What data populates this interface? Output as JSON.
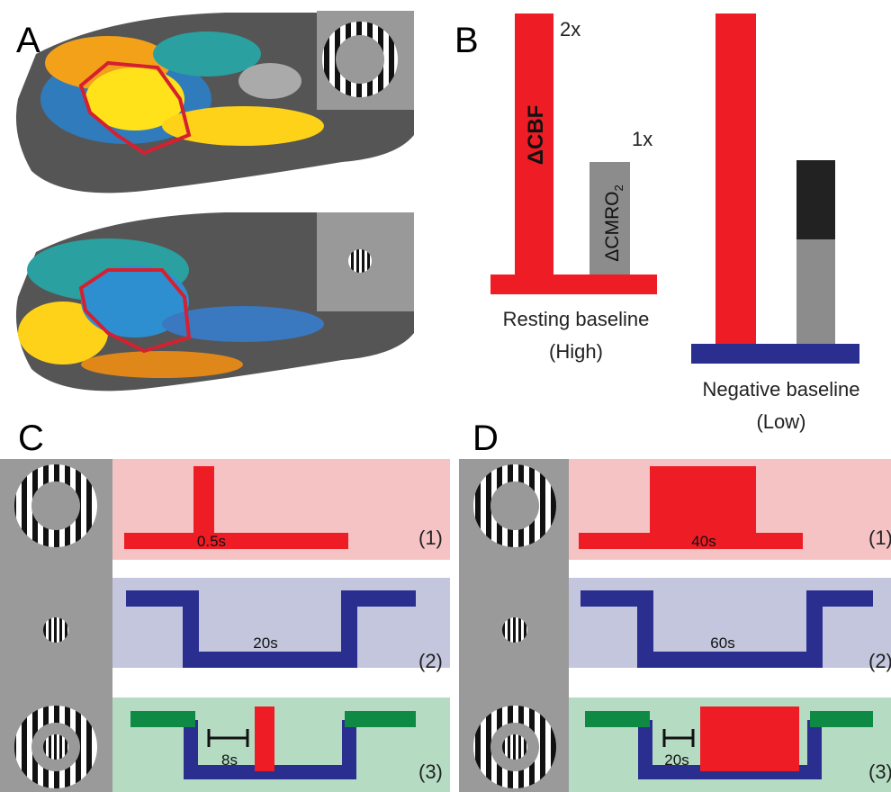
{
  "panels": {
    "a": {
      "label": "A"
    },
    "b": {
      "label": "B",
      "high_level": "2x",
      "low_level": "1x",
      "cbf_label": "ΔCBF",
      "cmro2_label": "ΔCMRO",
      "cmro2_subscript": "2",
      "resting_baseline": "Resting baseline",
      "resting_level": "(High)",
      "negative_baseline": "Negative baseline",
      "negative_level": "(Low)"
    },
    "c": {
      "label": "C",
      "rows": [
        {
          "duration": "0.5s",
          "index": "(1)"
        },
        {
          "duration": "20s",
          "index": "(2)"
        },
        {
          "duration": "8s",
          "index": "(3)"
        }
      ]
    },
    "d": {
      "label": "D",
      "rows": [
        {
          "duration": "40s",
          "index": "(1)"
        },
        {
          "duration": "60s",
          "index": "(2)"
        },
        {
          "duration": "20s",
          "index": "(3)"
        }
      ]
    }
  }
}
